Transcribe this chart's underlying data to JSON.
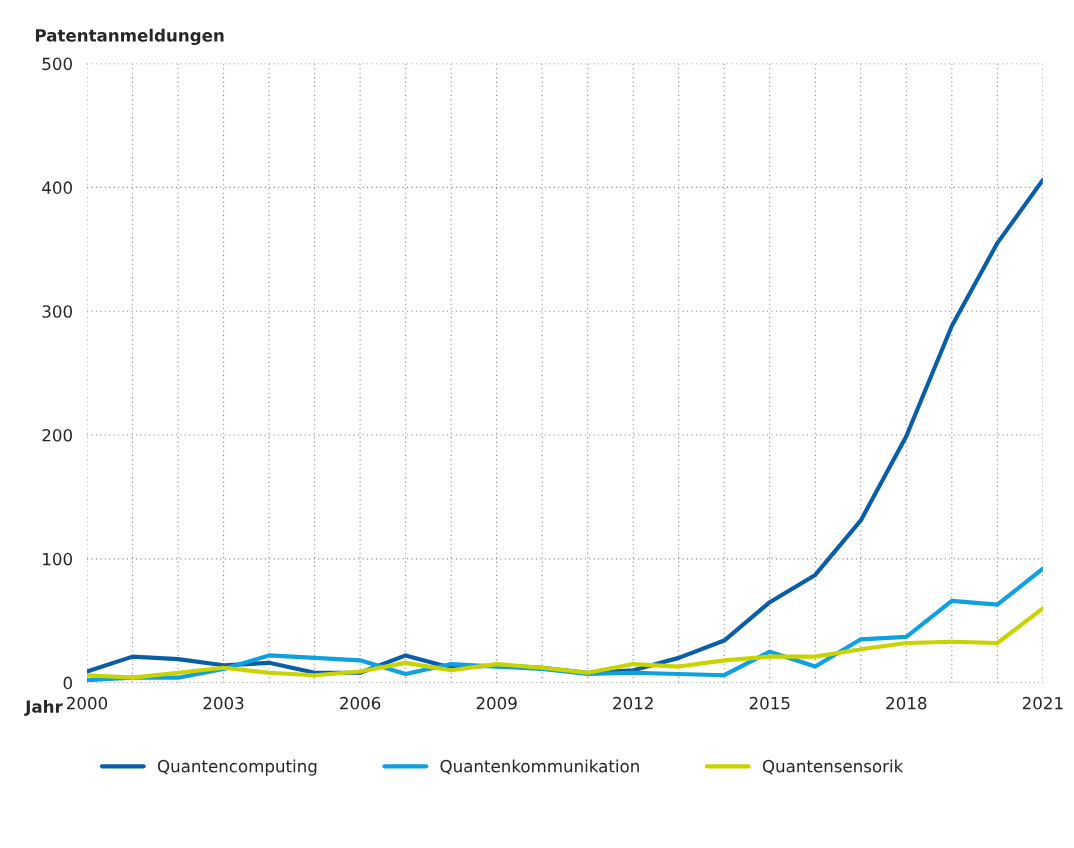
{
  "chart_data": {
    "type": "line",
    "ylabel": "Patentanmeldungen",
    "xlabel": "Jahr",
    "x": [
      2000,
      2001,
      2002,
      2003,
      2004,
      2005,
      2006,
      2007,
      2008,
      2009,
      2010,
      2011,
      2012,
      2013,
      2014,
      2015,
      2016,
      2017,
      2018,
      2019,
      2020,
      2021
    ],
    "series": [
      {
        "name": "Quantencomputing",
        "color": "#0a5ea8",
        "values": [
          9,
          21,
          19,
          14,
          16,
          8,
          8,
          22,
          12,
          14,
          12,
          8,
          10,
          20,
          34,
          65,
          87,
          131,
          199,
          288,
          355,
          406
        ]
      },
      {
        "name": "Quantenkommunikation",
        "color": "#0ea0e0",
        "values": [
          2,
          4,
          4,
          11,
          22,
          20,
          18,
          7,
          15,
          13,
          11,
          7,
          8,
          7,
          6,
          25,
          13,
          35,
          37,
          66,
          63,
          92
        ]
      },
      {
        "name": "Quantensensorik",
        "color": "#c8d400",
        "values": [
          6,
          4,
          8,
          12,
          8,
          6,
          9,
          16,
          10,
          15,
          12,
          8,
          15,
          13,
          18,
          21,
          21,
          27,
          32,
          33,
          32,
          60
        ]
      }
    ],
    "xlim": [
      2000,
      2021
    ],
    "ylim": [
      0,
      500
    ],
    "xticks": [
      2000,
      {
        "value": 2001,
        "label": null
      },
      {
        "value": 2002,
        "label": null
      },
      2003,
      {
        "value": 2004,
        "label": null
      },
      {
        "value": 2005,
        "label": null
      },
      2006,
      {
        "value": 2007,
        "label": null
      },
      {
        "value": 2008,
        "label": null
      },
      2009,
      {
        "value": 2010,
        "label": null
      },
      {
        "value": 2011,
        "label": null
      },
      2012,
      {
        "value": 2013,
        "label": null
      },
      {
        "value": 2014,
        "label": null
      },
      2015,
      {
        "value": 2016,
        "label": null
      },
      {
        "value": 2017,
        "label": null
      },
      2018,
      {
        "value": 2019,
        "label": null
      },
      {
        "value": 2020,
        "label": null
      },
      2021
    ],
    "yticks": [
      0,
      100,
      200,
      300,
      400,
      500
    ],
    "grid": true,
    "legend": "bottom",
    "marker": "none",
    "line_style": "solid"
  }
}
